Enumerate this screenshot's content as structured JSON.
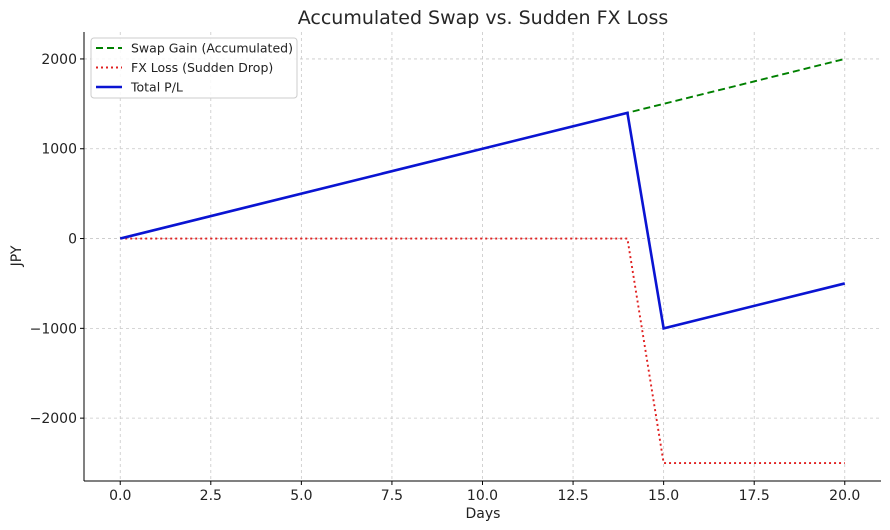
{
  "chart_data": {
    "type": "line",
    "title": "Accumulated Swap vs. Sudden FX Loss",
    "xlabel": "Days",
    "ylabel": "JPY",
    "xlim": [
      -1,
      21
    ],
    "ylim": [
      -2700,
      2300
    ],
    "x_ticks": [
      0,
      2.5,
      5,
      7.5,
      10,
      12.5,
      15,
      17.5,
      20
    ],
    "x_tick_labels": [
      "0.0",
      "2.5",
      "5.0",
      "7.5",
      "10.0",
      "12.5",
      "15.0",
      "17.5",
      "20.0"
    ],
    "y_ticks": [
      -2000,
      -1000,
      0,
      1000,
      2000
    ],
    "y_tick_labels": [
      "−2000",
      "−1000",
      "0",
      "1000",
      "2000"
    ],
    "grid": true,
    "legend_position": "top-left",
    "series": [
      {
        "name": "Swap Gain (Accumulated)",
        "color": "#008000",
        "style": "dashed",
        "x": [
          0,
          20
        ],
        "y": [
          0,
          2000
        ]
      },
      {
        "name": "FX Loss (Sudden Drop)",
        "color": "#e02020",
        "style": "dotted",
        "x": [
          0,
          14,
          15,
          20
        ],
        "y": [
          0,
          0,
          -2500,
          -2500
        ]
      },
      {
        "name": "Total P/L",
        "color": "#0a14d2",
        "style": "solid",
        "x": [
          0,
          14,
          15,
          20
        ],
        "y": [
          0,
          1400,
          -1000,
          -500
        ]
      }
    ]
  }
}
